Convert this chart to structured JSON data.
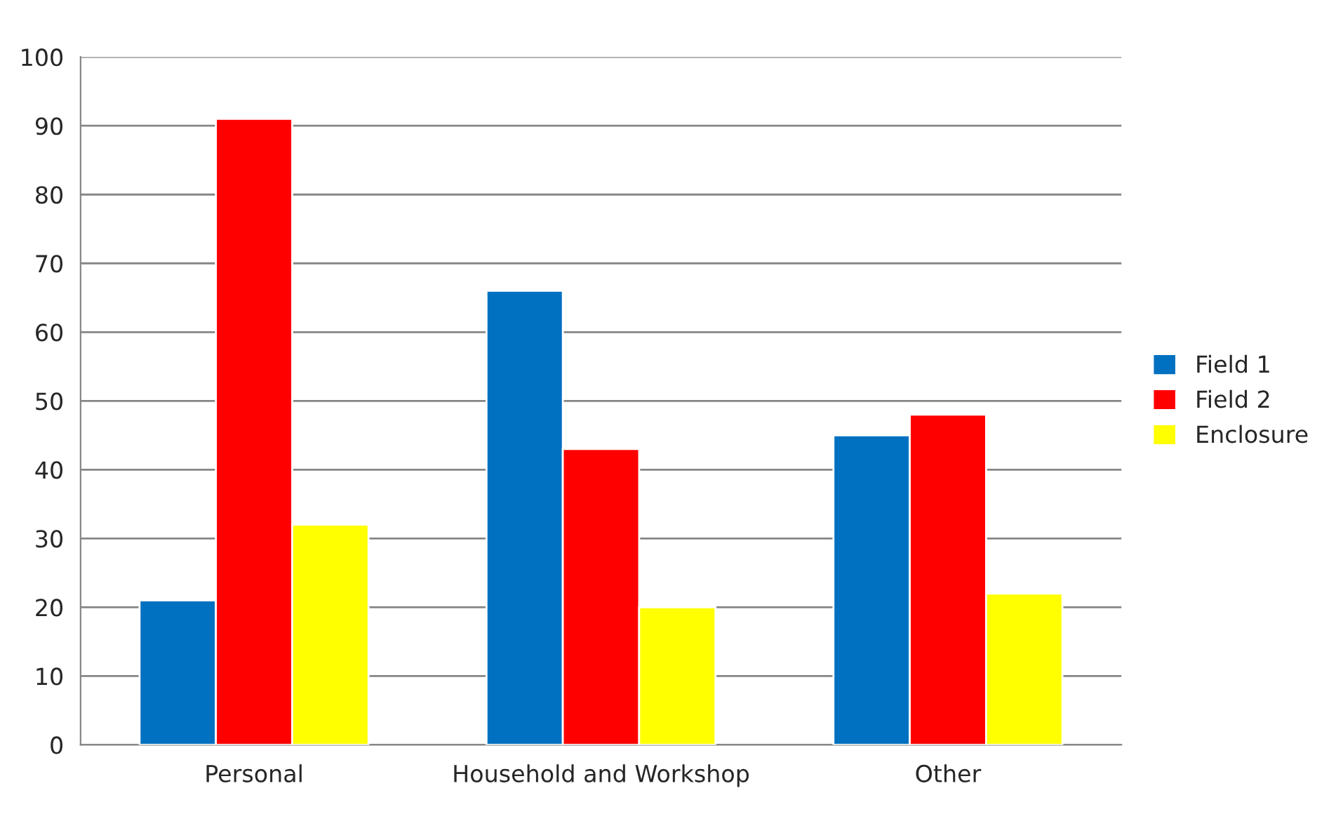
{
  "chart_data": {
    "type": "bar",
    "categories": [
      "Personal",
      "Household and Workshop",
      "Other"
    ],
    "series": [
      {
        "name": "Field 1",
        "color": "#0070c0",
        "values": [
          21,
          66,
          45
        ]
      },
      {
        "name": "Field 2",
        "color": "#ff0000",
        "values": [
          91,
          43,
          48
        ]
      },
      {
        "name": "Enclosure",
        "color": "#ffff00",
        "values": [
          32,
          20,
          22
        ]
      }
    ],
    "ylim": [
      0,
      100
    ],
    "yticks": [
      0,
      10,
      20,
      30,
      40,
      50,
      60,
      70,
      80,
      90,
      100
    ],
    "grid": "y",
    "legend": "right"
  }
}
